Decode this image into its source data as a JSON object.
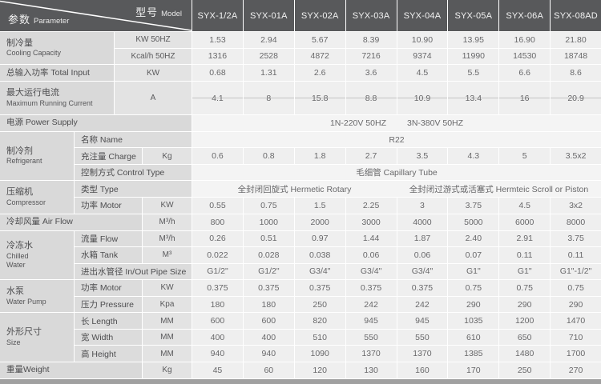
{
  "header": {
    "corner_model_zh": "型号",
    "corner_model_en": "Model",
    "corner_parameter_zh": "参数",
    "corner_parameter_en": "Parameter",
    "models": [
      "SYX-1/2A",
      "SYX-01A",
      "SYX-02A",
      "SYX-03A",
      "SYX-04A",
      "SYX-05A",
      "SYX-06A",
      "SYX-08AD"
    ]
  },
  "colors": {
    "header_bg": "#58595b",
    "label_bg": "#d9d9d9",
    "unit_bg": "#e3e3e3",
    "data_bg": "#efefef",
    "span_bg": "#f4f4f4",
    "bottom_bar": "#a0a0a0"
  },
  "table": {
    "cooling": {
      "zh": "制冷量",
      "en": "Cooling Capacity",
      "rows": [
        {
          "unit": "KW 50HZ",
          "values": [
            "1.53",
            "2.94",
            "5.67",
            "8.39",
            "10.90",
            "13.95",
            "16.90",
            "21.80"
          ]
        },
        {
          "unit": "Kcal/h 50HZ",
          "values": [
            "1316",
            "2528",
            "4872",
            "7216",
            "9374",
            "11990",
            "14530",
            "18748"
          ]
        }
      ]
    },
    "total_input": {
      "label": "总输入功率 Total Input",
      "unit": "KW",
      "values": [
        "0.68",
        "1.31",
        "2.6",
        "3.6",
        "4.5",
        "5.5",
        "6.6",
        "8.6"
      ]
    },
    "max_current": {
      "zh": "最大运行电流",
      "en": "Maximum Running Current",
      "unit": "A",
      "values": [
        "4.1",
        "8",
        "15.8",
        "8.8",
        "10.9",
        "13.4",
        "16",
        "20.9"
      ]
    },
    "power_supply": {
      "label": "电源 Power Supply",
      "values": [
        "1N-220V 50HZ",
        "3N-380V 50HZ"
      ]
    },
    "refrigerant": {
      "zh": "制冷剂",
      "en": "Refrigerant",
      "name": {
        "label": "名称 Name",
        "value": "R22"
      },
      "charge": {
        "label": "充注量 Charge",
        "unit": "Kg",
        "values": [
          "0.6",
          "0.8",
          "1.8",
          "2.7",
          "3.5",
          "4.3",
          "5",
          "3.5x2"
        ]
      },
      "control": {
        "label": "控制方式 Control Type",
        "value": "毛细管 Capillary Tube"
      }
    },
    "compressor": {
      "zh": "压缩机",
      "en": "Compressor",
      "type": {
        "label": "类型 Type",
        "left": "全封闭回旋式 Hermetic Rotary",
        "right": "全封闭过游式或活塞式 Hermteic Scroll or Piston"
      },
      "motor": {
        "label": "功率 Motor",
        "unit": "KW",
        "values": [
          "0.55",
          "0.75",
          "1.5",
          "2.25",
          "3",
          "3.75",
          "4.5",
          "3x2"
        ]
      }
    },
    "air_flow": {
      "label": "冷却风量 Air Flow",
      "unit": "M³/h",
      "values": [
        "800",
        "1000",
        "2000",
        "3000",
        "4000",
        "5000",
        "6000",
        "8000"
      ]
    },
    "chilled_water": {
      "zh": "冷冻水",
      "en": "Chilled\nWater",
      "flow": {
        "label": "流量 Flow",
        "unit": "M³/h",
        "values": [
          "0.26",
          "0.51",
          "0.97",
          "1.44",
          "1.87",
          "2.40",
          "2.91",
          "3.75"
        ]
      },
      "tank": {
        "label": "水箱 Tank",
        "unit": "M³",
        "values": [
          "0.022",
          "0.028",
          "0.038",
          "0.06",
          "0.06",
          "0.07",
          "0.11",
          "0.11"
        ]
      },
      "pipe": {
        "label": "进出水管径 In/Out Pipe Size",
        "values": [
          "G1/2\"",
          "G1/2\"",
          "G3/4\"",
          "G3/4\"",
          "G3/4\"",
          "G1\"",
          "G1\"",
          "G1\"-1/2\""
        ]
      }
    },
    "water_pump": {
      "zh": "水泵",
      "en": "Water Pump",
      "motor": {
        "label": "功率 Motor",
        "unit": "KW",
        "values": [
          "0.375",
          "0.375",
          "0.375",
          "0.375",
          "0.375",
          "0.75",
          "0.75",
          "0.75"
        ]
      },
      "pressure": {
        "label": "压力 Pressure",
        "unit": "Kpa",
        "values": [
          "180",
          "180",
          "250",
          "242",
          "242",
          "290",
          "290",
          "290"
        ]
      }
    },
    "size": {
      "zh": "外形尺寸",
      "en": "Size",
      "length": {
        "label": "长 Length",
        "unit": "MM",
        "values": [
          "600",
          "600",
          "820",
          "945",
          "945",
          "1035",
          "1200",
          "1470"
        ]
      },
      "width": {
        "label": "宽 Width",
        "unit": "MM",
        "values": [
          "400",
          "400",
          "510",
          "550",
          "550",
          "610",
          "650",
          "710"
        ]
      },
      "height": {
        "label": "高 Height",
        "unit": "MM",
        "values": [
          "940",
          "940",
          "1090",
          "1370",
          "1370",
          "1385",
          "1480",
          "1700"
        ]
      }
    },
    "weight": {
      "label": "重量Weight",
      "unit": "Kg",
      "values": [
        "45",
        "60",
        "120",
        "130",
        "160",
        "170",
        "250",
        "270"
      ]
    }
  }
}
